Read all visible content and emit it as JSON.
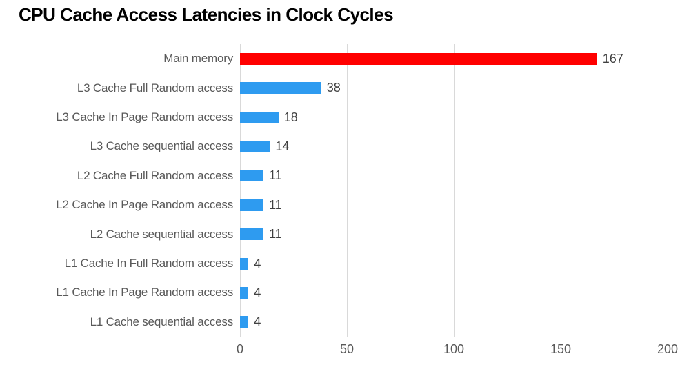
{
  "title": "CPU Cache Access Latencies in Clock Cycles",
  "chart_data": {
    "type": "bar",
    "orientation": "horizontal",
    "title": "CPU Cache Access Latencies in Clock Cycles",
    "xlabel": "",
    "ylabel": "",
    "xlim": [
      0,
      200
    ],
    "grid": "vertical-gridlines",
    "legend": "none",
    "xticks": [
      {
        "label": "0",
        "value": 0
      },
      {
        "label": "50",
        "value": 50
      },
      {
        "label": "100",
        "value": 100
      },
      {
        "label": "150",
        "value": 150
      },
      {
        "label": "200",
        "value": 200
      }
    ],
    "categories": [
      "Main memory",
      "L3 Cache Full Random access",
      "L3 Cache In Page Random access",
      "L3 Cache sequential access",
      "L2 Cache Full Random access",
      "L2 Cache In Page Random access",
      "L2 Cache sequential access",
      "L1 Cache In Full Random access",
      "L1 Cache In Page Random access",
      "L1 Cache sequential access"
    ],
    "values": [
      167,
      38,
      18,
      14,
      11,
      11,
      11,
      4,
      4,
      4
    ],
    "rows": [
      {
        "label": "Main memory",
        "value": 167,
        "color": "#ff0000"
      },
      {
        "label": "L3 Cache Full Random access",
        "value": 38,
        "color": "#2e9bf0"
      },
      {
        "label": "L3 Cache In Page Random access",
        "value": 18,
        "color": "#2e9bf0"
      },
      {
        "label": "L3 Cache sequential access",
        "value": 14,
        "color": "#2e9bf0"
      },
      {
        "label": "L2 Cache Full Random access",
        "value": 11,
        "color": "#2e9bf0"
      },
      {
        "label": "L2 Cache In Page Random access",
        "value": 11,
        "color": "#2e9bf0"
      },
      {
        "label": "L2 Cache sequential access",
        "value": 11,
        "color": "#2e9bf0"
      },
      {
        "label": "L1 Cache In Full Random access",
        "value": 4,
        "color": "#2e9bf0"
      },
      {
        "label": "L1 Cache In Page Random access",
        "value": 4,
        "color": "#2e9bf0"
      },
      {
        "label": "L1 Cache sequential access",
        "value": 4,
        "color": "#2e9bf0"
      }
    ],
    "colors": {
      "main_memory_bar": "#ff0000",
      "cache_bar": "#2e9bf0",
      "gridline": "#d9d9d9",
      "category_text": "#595959",
      "value_text": "#404040",
      "tick_text": "#595959",
      "title_text": "#000000",
      "background": "#ffffff"
    }
  }
}
